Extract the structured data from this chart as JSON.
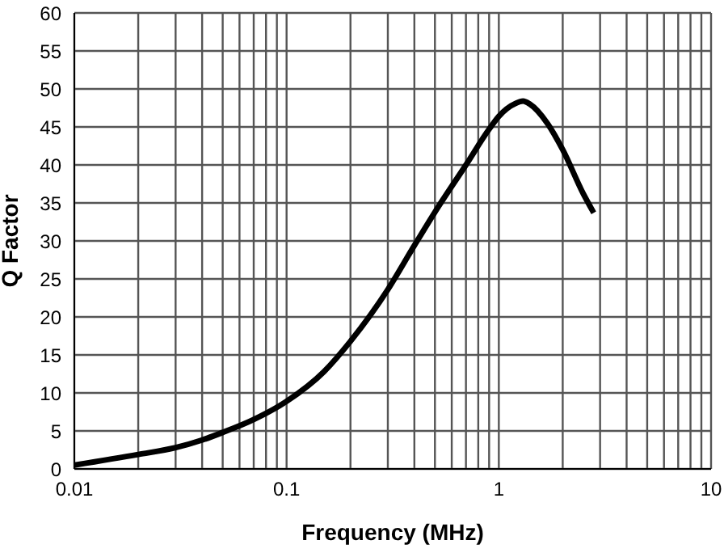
{
  "chart_data": {
    "type": "line",
    "xlabel": "Frequency (MHz)",
    "ylabel": "Q Factor",
    "log": "x",
    "grid": true,
    "legend": false,
    "marker": "none",
    "line_style": "solid",
    "xlim": [
      0.01,
      10
    ],
    "xticks": [
      0.01,
      {
        "value": 0.02,
        "label": null
      },
      {
        "value": 0.03,
        "label": null
      },
      {
        "value": 0.04,
        "label": null
      },
      {
        "value": 0.05,
        "label": null
      },
      {
        "value": 0.06,
        "label": null
      },
      {
        "value": 0.07,
        "label": null
      },
      {
        "value": 0.08,
        "label": null
      },
      {
        "value": 0.09,
        "label": null
      },
      0.1,
      {
        "value": 0.2,
        "label": null
      },
      {
        "value": 0.3,
        "label": null
      },
      {
        "value": 0.4,
        "label": null
      },
      {
        "value": 0.5,
        "label": null
      },
      {
        "value": 0.6,
        "label": null
      },
      {
        "value": 0.7,
        "label": null
      },
      {
        "value": 0.8,
        "label": null
      },
      {
        "value": 0.9,
        "label": null
      },
      1,
      {
        "value": 2,
        "label": null
      },
      {
        "value": 3,
        "label": null
      },
      {
        "value": 4,
        "label": null
      },
      {
        "value": 5,
        "label": null
      },
      {
        "value": 6,
        "label": null
      },
      {
        "value": 7,
        "label": null
      },
      {
        "value": 8,
        "label": null
      },
      {
        "value": 9,
        "label": null
      },
      10
    ],
    "ylim": [
      0,
      60
    ],
    "yticks": [
      0,
      5,
      10,
      15,
      20,
      25,
      30,
      35,
      40,
      45,
      50,
      55,
      60
    ],
    "x": [
      0.01,
      0.02,
      0.03,
      0.04,
      0.05,
      0.07,
      0.1,
      0.15,
      0.2,
      0.3,
      0.4,
      0.5,
      0.7,
      0.9,
      1.0,
      1.2,
      1.3,
      1.4,
      1.7,
      2.0,
      2.5,
      2.8
    ],
    "series": [
      {
        "color": "#000000",
        "values": [
          0.5,
          1.9,
          2.8,
          3.8,
          4.8,
          6.5,
          8.9,
          12.8,
          16.8,
          23.6,
          29.4,
          33.8,
          40,
          44.7,
          46.4,
          48.1,
          48.4,
          48,
          45.4,
          42,
          36.2,
          33.7
        ]
      }
    ]
  }
}
